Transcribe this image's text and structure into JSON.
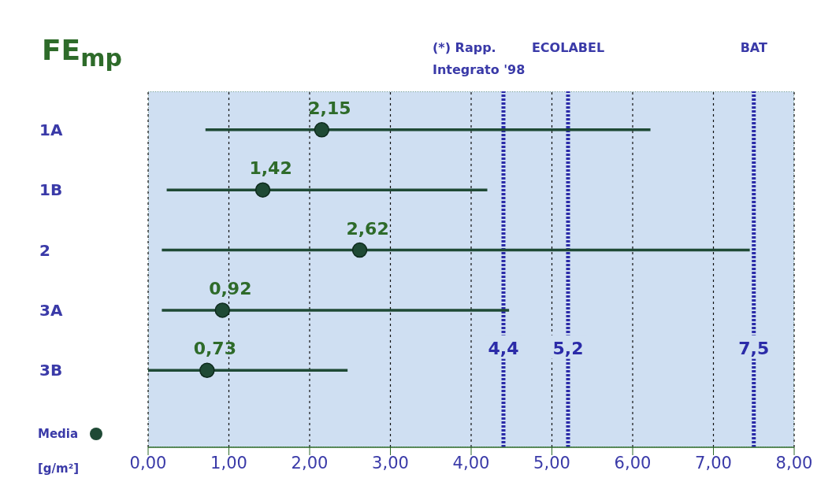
{
  "chart_data": {
    "type": "scatter",
    "orientation": "horizontal",
    "title": "FE$_{mp}$",
    "xlabel": "[g/m²]",
    "categories": [
      "1A",
      "1B",
      "2",
      "3A",
      "3B"
    ],
    "series": [
      {
        "name": "Media",
        "color": "#1f4a35",
        "values": [
          2.15,
          1.42,
          2.62,
          0.92,
          0.73
        ],
        "errors": [
          [
            0.71,
            6.22
          ],
          [
            0.23,
            4.2
          ],
          [
            0.17,
            7.45
          ],
          [
            0.17,
            4.47
          ],
          [
            0,
            2.47
          ]
        ],
        "value_labels": [
          "2,15",
          "1,42",
          "2,62",
          "0,92",
          "0,73"
        ]
      }
    ],
    "xlim": [
      0,
      8
    ],
    "xticks": [
      {
        "value": 0,
        "label": "0,00"
      },
      {
        "value": 1,
        "label": "1,00"
      },
      {
        "value": 2,
        "label": "2,00"
      },
      {
        "value": 3,
        "label": "3,00"
      },
      {
        "value": 4,
        "label": "4,00"
      },
      {
        "value": 5,
        "label": "5,00"
      },
      {
        "value": 6,
        "label": "6,00"
      },
      {
        "value": 7,
        "label": "7,00"
      },
      {
        "value": 8,
        "label": "8,00"
      }
    ],
    "ref_lines": [
      {
        "axis": "x",
        "value": 4.4,
        "label": "4,4",
        "color": "#2b2ba8",
        "line_style": "dotted"
      },
      {
        "axis": "x",
        "value": 5.2,
        "label": "5,2",
        "color": "#2b2ba8",
        "line_style": "dotted"
      },
      {
        "axis": "x",
        "value": 7.5,
        "label": "7,5",
        "color": "#2b2ba8",
        "line_style": "dotted"
      }
    ],
    "annotations": [
      "(*) Rapp. Integrato '98",
      "ECOLABEL",
      "BAT"
    ],
    "grid": "x",
    "legend": "bottom left",
    "marker": "circle"
  }
}
